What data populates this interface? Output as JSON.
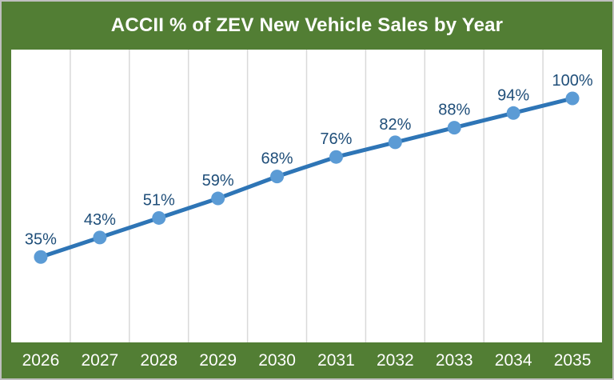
{
  "colors": {
    "frame_green": "#527e34",
    "outer_border": "#bfbfbf",
    "plot_background": "#ffffff",
    "gridline": "#d9d9d9",
    "line": "#2e75b6",
    "marker": "#5b9bd5",
    "data_label": "#1f4e79",
    "axis_label": "#ffffff",
    "title_text": "#ffffff"
  },
  "chart_data": {
    "type": "line",
    "title": "ACCII % of ZEV New Vehicle Sales by Year",
    "categories": [
      "2026",
      "2027",
      "2028",
      "2029",
      "2030",
      "2031",
      "2032",
      "2033",
      "2034",
      "2035"
    ],
    "series": [
      {
        "name": "ACCII % of ZEV New Vehicle Sales",
        "values": [
          35,
          43,
          51,
          59,
          68,
          76,
          82,
          88,
          94,
          100
        ]
      }
    ],
    "data_labels": [
      "35%",
      "43%",
      "51%",
      "59%",
      "68%",
      "76%",
      "82%",
      "88%",
      "94%",
      "100%"
    ],
    "xlabel": "",
    "ylabel": "",
    "ylim": [
      0,
      120
    ],
    "grid": "vertical-only",
    "legend": "none",
    "marker_shape": "circle"
  }
}
